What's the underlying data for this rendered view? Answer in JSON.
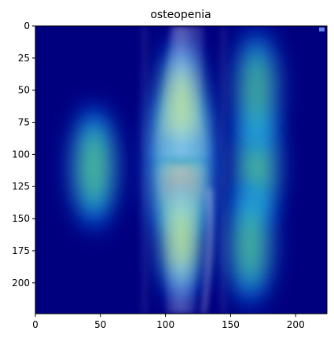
{
  "chart_data": {
    "type": "heatmap",
    "title": "osteopenia",
    "xlabel": "",
    "ylabel": "",
    "xlim": [
      0,
      224
    ],
    "ylim": [
      224,
      0
    ],
    "xticks": [
      0,
      50,
      100,
      150,
      200
    ],
    "yticks": [
      0,
      25,
      50,
      75,
      100,
      125,
      150,
      175,
      200
    ],
    "colormap": "jet",
    "grid": false,
    "overlay": "knee X-ray radiograph (anterior view) under a Grad-CAM style activation heatmap",
    "hotspots": [
      {
        "x": 112,
        "y": 90,
        "intensity": 1.0
      },
      {
        "x": 112,
        "y": 125,
        "intensity": 0.85
      },
      {
        "x": 112,
        "y": 60,
        "intensity": 0.55
      },
      {
        "x": 112,
        "y": 165,
        "intensity": 0.55
      },
      {
        "x": 45,
        "y": 110,
        "intensity": 0.45
      },
      {
        "x": 170,
        "y": 110,
        "intensity": 0.45
      },
      {
        "x": 165,
        "y": 170,
        "intensity": 0.4
      },
      {
        "x": 170,
        "y": 50,
        "intensity": 0.35
      }
    ],
    "colors": {
      "low": "#00007f",
      "mid_low": "#0066ff",
      "mid": "#2ef0b4",
      "mid_high": "#d8e000",
      "high": "#ff6a3a"
    }
  }
}
